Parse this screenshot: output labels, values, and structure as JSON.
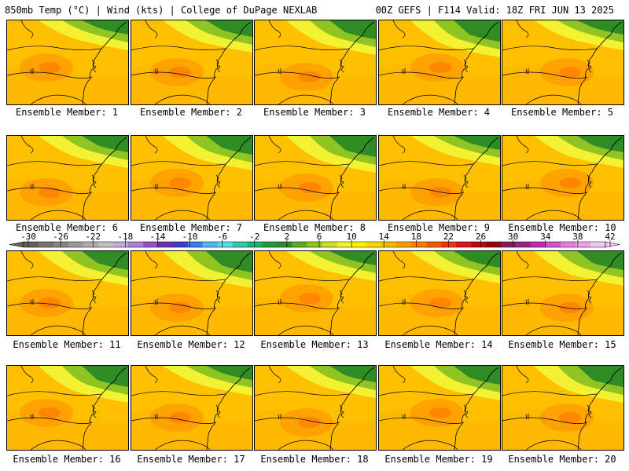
{
  "header": {
    "left": "850mb Temp (°C) | Wind (kts) | College of DuPage NEXLAB",
    "right": "00Z GEFS | F114 Valid: 18Z FRI JUN 13 2025"
  },
  "colorbar": {
    "labels": [
      "-30",
      "-26",
      "-22",
      "-18",
      "-14",
      "-10",
      "-6",
      "-2",
      "2",
      "6",
      "10",
      "14",
      "18",
      "22",
      "26",
      "30",
      "34",
      "38",
      "42"
    ],
    "colors": [
      "#606060",
      "#737373",
      "#868686",
      "#999999",
      "#adadad",
      "#c0c0c0",
      "#c7a6e6",
      "#b27bd8",
      "#9a4fc7",
      "#6a2fb3",
      "#3a3fc6",
      "#3a7fe8",
      "#4fb5f2",
      "#5ad8e8",
      "#2fc8a8",
      "#23b070",
      "#1f9a3a",
      "#2f8b24",
      "#5bab1f",
      "#8fc422",
      "#c9df2a",
      "#f2f232",
      "#fff200",
      "#ffd500",
      "#ffb400",
      "#ff9a00",
      "#ff7a00",
      "#f25a00",
      "#e53a00",
      "#d21a1a",
      "#b40f0f",
      "#8c0a0a",
      "#8a1a5a",
      "#a0208a",
      "#c02ab0",
      "#d84fcf",
      "#e87ae0",
      "#f0a0ea",
      "#f6c6f2"
    ]
  },
  "members": [
    {
      "caption": "Ensemble Member: 1"
    },
    {
      "caption": "Ensemble Member: 2"
    },
    {
      "caption": "Ensemble Member: 3"
    },
    {
      "caption": "Ensemble Member: 4"
    },
    {
      "caption": "Ensemble Member: 5"
    },
    {
      "caption": "Ensemble Member: 6"
    },
    {
      "caption": "Ensemble Member: 7"
    },
    {
      "caption": "Ensemble Member: 8"
    },
    {
      "caption": "Ensemble Member: 9"
    },
    {
      "caption": "Ensemble Member: 10"
    },
    {
      "caption": "Ensemble Member: 11"
    },
    {
      "caption": "Ensemble Member: 12"
    },
    {
      "caption": "Ensemble Member: 13"
    },
    {
      "caption": "Ensemble Member: 14"
    },
    {
      "caption": "Ensemble Member: 15"
    },
    {
      "caption": "Ensemble Member: 16"
    },
    {
      "caption": "Ensemble Member: 17"
    },
    {
      "caption": "Ensemble Member: 18"
    },
    {
      "caption": "Ensemble Member: 19"
    },
    {
      "caption": "Ensemble Member: 20"
    }
  ]
}
